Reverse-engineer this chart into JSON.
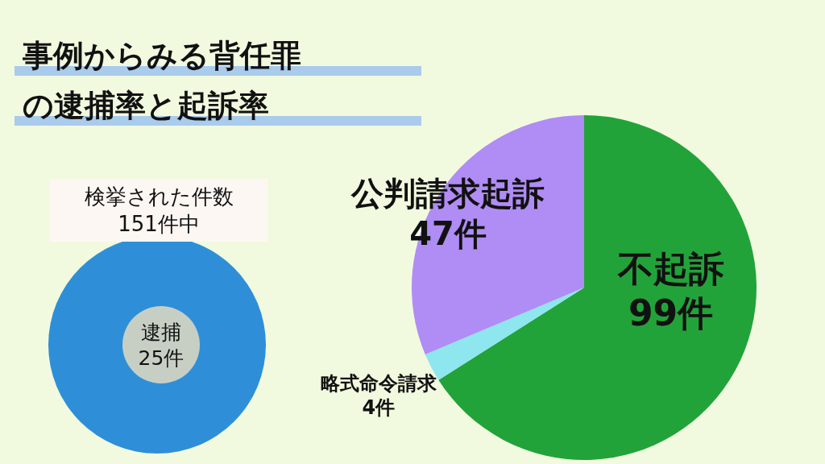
{
  "chart_data": [
    {
      "type": "other",
      "title": "事例からみる背任罪の逮捕率と起訴率",
      "subtitle": "検挙された件数\n151件中",
      "annotations": [
        "逮捕\n25件"
      ]
    },
    {
      "type": "pie",
      "categories": [
        "不起訴",
        "略式命令請求",
        "公判請求起訴"
      ],
      "values": [
        99,
        4,
        47
      ],
      "colors": [
        "#22a33a",
        "#8ee6ee",
        "#b08cf5"
      ],
      "value_labels": [
        "99件",
        "4件",
        "47件"
      ]
    }
  ]
}
